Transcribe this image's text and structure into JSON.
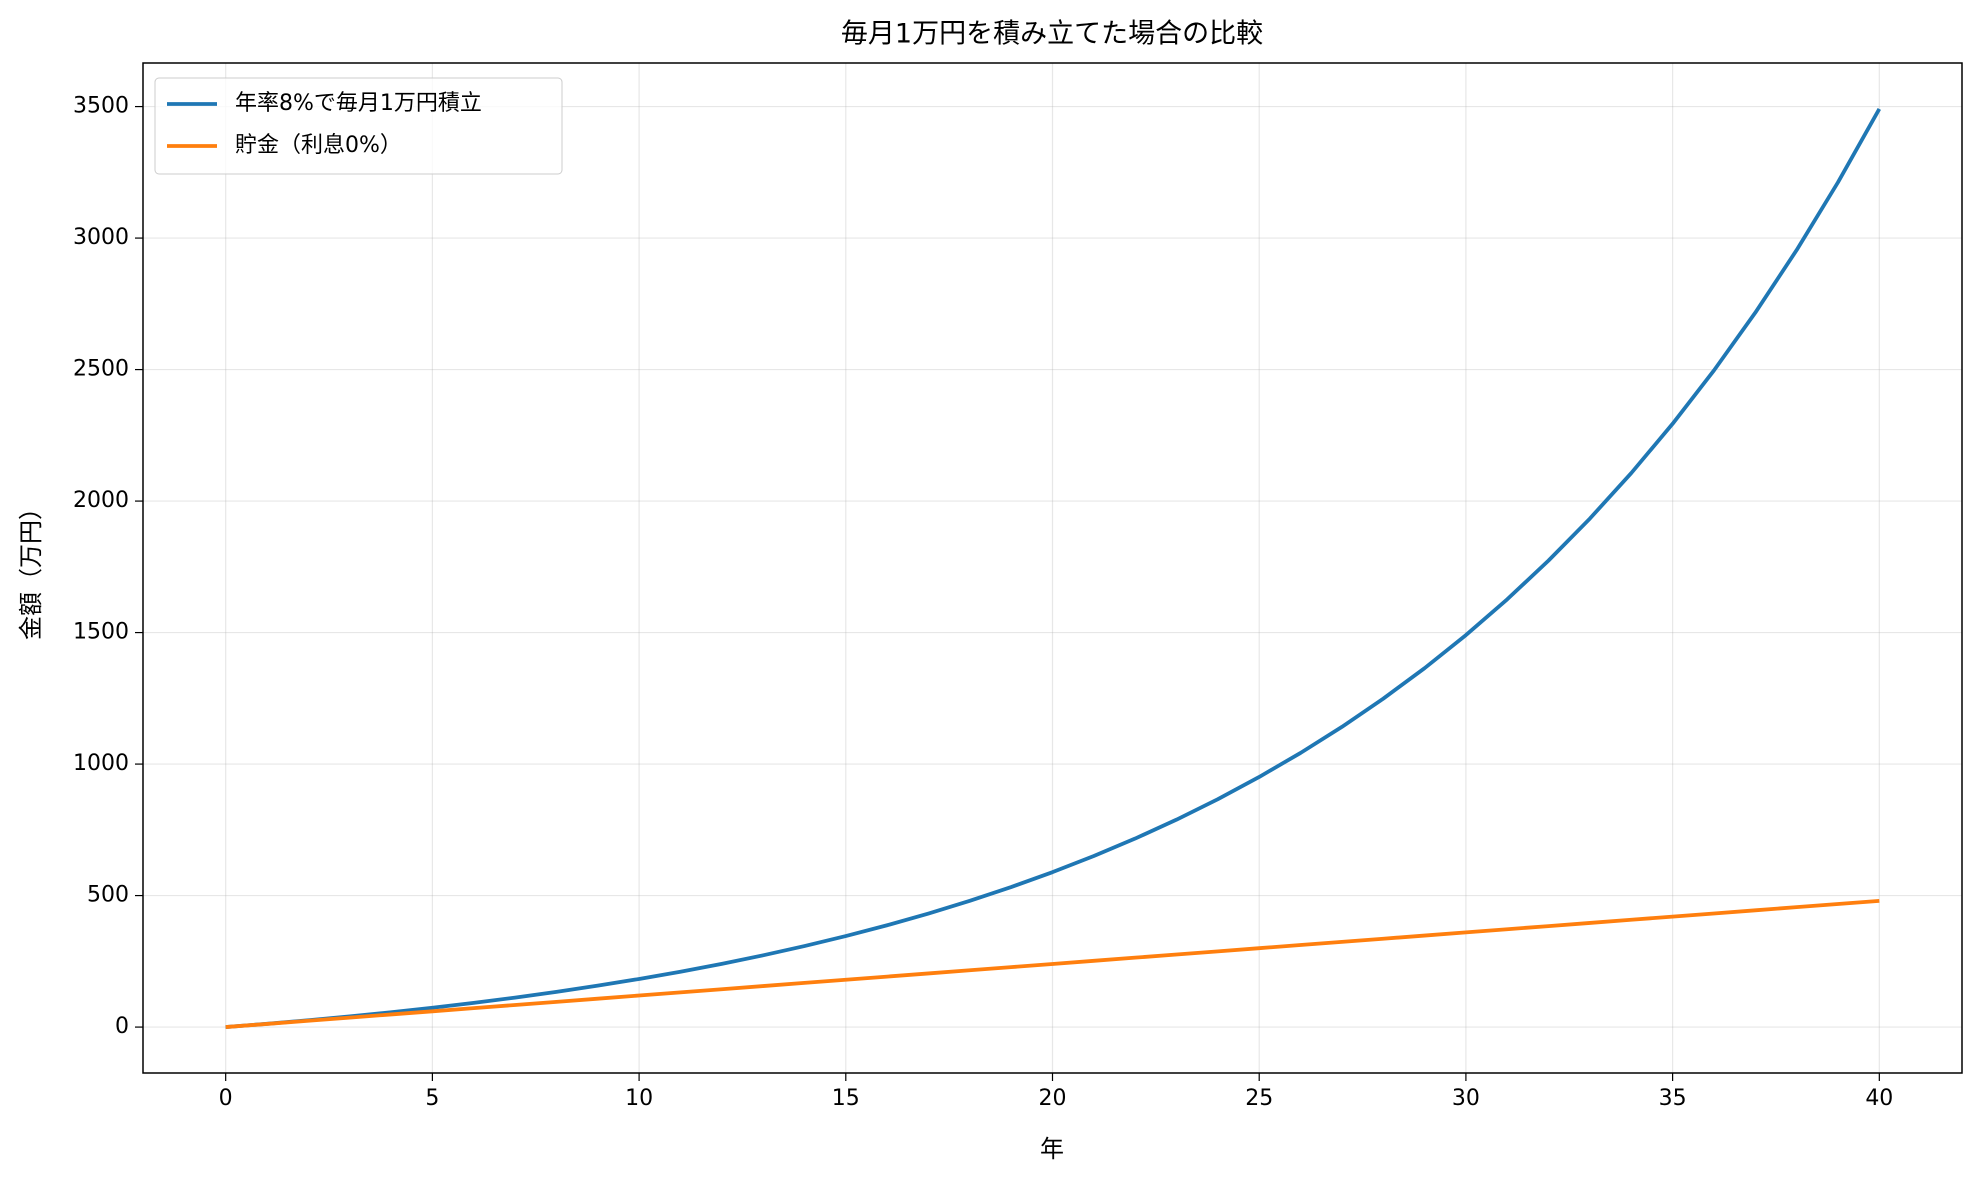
{
  "chart_data": {
    "type": "line",
    "title": "毎月1万円を積み立てた場合の比較",
    "xlabel": "年",
    "ylabel": "金額（万円）",
    "x": [
      0,
      1,
      2,
      3,
      4,
      5,
      6,
      7,
      8,
      9,
      10,
      11,
      12,
      13,
      14,
      15,
      16,
      17,
      18,
      19,
      20,
      21,
      22,
      23,
      24,
      25,
      26,
      27,
      28,
      29,
      30,
      31,
      32,
      33,
      34,
      35,
      36,
      37,
      38,
      39,
      40
    ],
    "series": [
      {
        "name": "年率8%で毎月1万円積立",
        "color": "#1f77b4",
        "values": [
          0,
          12.45,
          25.93,
          40.54,
          56.35,
          73.48,
          92.03,
          112.11,
          133.87,
          157.43,
          182.95,
          210.58,
          240.51,
          272.92,
          308.03,
          346.04,
          387.21,
          431.8,
          480.09,
          532.39,
          589.03,
          650.37,
          716.8,
          788.74,
          866.66,
          951.04,
          1042.43,
          1141.4,
          1248.58,
          1364.67,
          1490.38,
          1626.54,
          1773.99,
          1933.68,
          2106.62,
          2293.92,
          2496.77,
          2716.45,
          2954.37,
          3212.03,
          3491.08
        ]
      },
      {
        "name": "貯金（利息0%）",
        "color": "#ff7f0e",
        "values": [
          0,
          12,
          24,
          36,
          48,
          60,
          72,
          84,
          96,
          108,
          120,
          132,
          144,
          156,
          168,
          180,
          192,
          204,
          216,
          228,
          240,
          252,
          264,
          276,
          288,
          300,
          312,
          324,
          336,
          348,
          360,
          372,
          384,
          396,
          408,
          420,
          432,
          444,
          456,
          468,
          480
        ]
      }
    ],
    "xlim": [
      -2,
      42
    ],
    "ylim": [
      -174.6,
      3665.7
    ],
    "xticks": [
      0,
      5,
      10,
      15,
      20,
      25,
      30,
      35,
      40
    ],
    "yticks": [
      0,
      500,
      1000,
      1500,
      2000,
      2500,
      3000,
      3500
    ],
    "grid": true,
    "legend": "upper-left"
  }
}
